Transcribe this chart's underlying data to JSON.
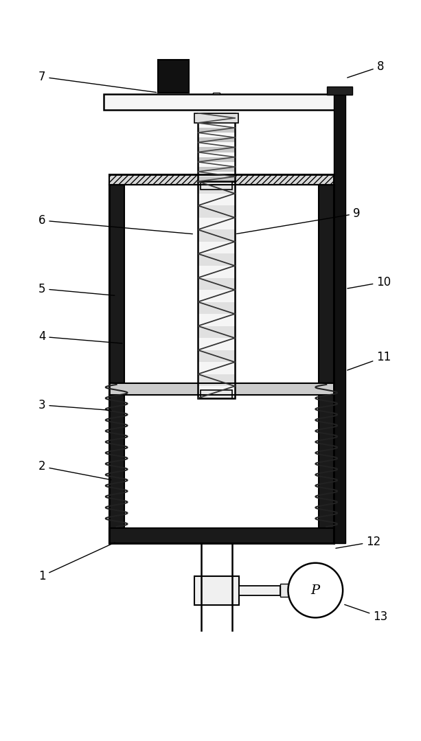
{
  "bg_color": "#ffffff",
  "line_color": "#000000",
  "wall_color": "#1a1a1a",
  "fig_width": 6.13,
  "fig_height": 10.79
}
